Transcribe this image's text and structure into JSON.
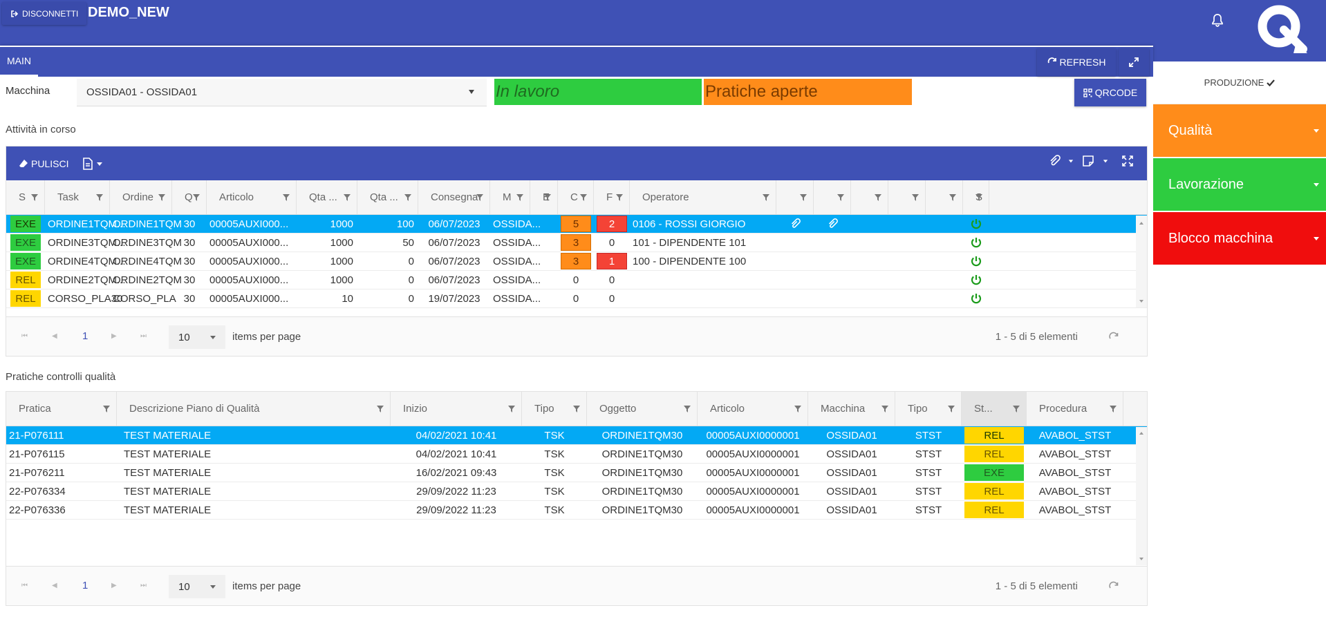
{
  "topbar": {
    "disconnect_label": "DISCONNETTI",
    "app_title": "DEMO_NEW"
  },
  "tabs": {
    "main_label": "MAIN",
    "refresh_label": "REFRESH"
  },
  "filter": {
    "macchina_label": "Macchina",
    "macchina_value": "OSSIDA01 - OSSIDA01",
    "state_in_lavoro": "In lavoro",
    "state_pratiche": "Pratiche aperte",
    "qrcode_label": "QRCODE"
  },
  "colors": {
    "primary": "#3f51b5",
    "selected_row": "#03a9f4",
    "green": "#2ecc40",
    "orange": "#ff8c1a",
    "red": "#f44336",
    "yellow": "#ffd600"
  },
  "attivita": {
    "title": "Attività in corso",
    "toolbar": {
      "clear_label": "PULISCI"
    },
    "columns": [
      "S",
      "Task",
      "Ordine",
      "Q",
      "Articolo",
      "Qta ...",
      "Qta ...",
      "Consegna",
      "M",
      "E",
      "C",
      "F",
      "Operatore",
      "",
      "",
      "",
      "",
      "",
      "S"
    ],
    "rows": [
      {
        "stato": "EXE",
        "task": "ORDINE1TQM...",
        "ordine": "ORDINE1TQM",
        "q": "30",
        "articolo": "00005AUXI000...",
        "qta1": "1000",
        "qta2": "100",
        "consegna": "06/07/2023",
        "macchina": "OSSIDA...",
        "c": "5",
        "f": "2",
        "operatore": "0106 - ROSSI GIORGIO"
      },
      {
        "stato": "EXE",
        "task": "ORDINE3TQM...",
        "ordine": "ORDINE3TQM",
        "q": "30",
        "articolo": "00005AUXI000...",
        "qta1": "1000",
        "qta2": "50",
        "consegna": "06/07/2023",
        "macchina": "OSSIDA...",
        "c": "3",
        "f": "0",
        "operatore": "101 - DIPENDENTE 101"
      },
      {
        "stato": "EXE",
        "task": "ORDINE4TQM...",
        "ordine": "ORDINE4TQM",
        "q": "30",
        "articolo": "00005AUXI000...",
        "qta1": "1000",
        "qta2": "0",
        "consegna": "06/07/2023",
        "macchina": "OSSIDA...",
        "c": "3",
        "f": "1",
        "operatore": "100 - DIPENDENTE 100"
      },
      {
        "stato": "REL",
        "task": "ORDINE2TQM...",
        "ordine": "ORDINE2TQM",
        "q": "30",
        "articolo": "00005AUXI000...",
        "qta1": "1000",
        "qta2": "0",
        "consegna": "06/07/2023",
        "macchina": "OSSIDA...",
        "c": "0",
        "f": "0",
        "operatore": ""
      },
      {
        "stato": "REL",
        "task": "CORSO_PLA30",
        "ordine": "CORSO_PLA",
        "q": "30",
        "articolo": "00005AUXI000...",
        "qta1": "10",
        "qta2": "0",
        "consegna": "19/07/2023",
        "macchina": "OSSIDA...",
        "c": "0",
        "f": "0",
        "operatore": ""
      }
    ],
    "pager": {
      "page": "1",
      "page_size": "10",
      "per_page_label": "items per page",
      "info": "1 - 5 di 5 elementi"
    }
  },
  "pratiche": {
    "title": "Pratiche controlli qualità",
    "columns": [
      "Pratica",
      "Descrizione Piano di Qualità",
      "Inizio",
      "Tipo",
      "Oggetto",
      "Articolo",
      "Macchina",
      "Tipo",
      "St...",
      "Procedura"
    ],
    "rows": [
      {
        "pratica": "21-P076111",
        "descrizione": "TEST MATERIALE",
        "inizio": "04/02/2021 10:41",
        "tipo": "TSK",
        "oggetto": "ORDINE1TQM30",
        "articolo": "00005AUXI0000001",
        "macchina": "OSSIDA01",
        "tipo2": "STST",
        "stato": "REL",
        "procedura": "AVABOL_STST"
      },
      {
        "pratica": "21-P076115",
        "descrizione": "TEST MATERIALE",
        "inizio": "04/02/2021 10:41",
        "tipo": "TSK",
        "oggetto": "ORDINE1TQM30",
        "articolo": "00005AUXI0000001",
        "macchina": "OSSIDA01",
        "tipo2": "STST",
        "stato": "REL",
        "procedura": "AVABOL_STST"
      },
      {
        "pratica": "21-P076211",
        "descrizione": "TEST MATERIALE",
        "inizio": "16/02/2021 09:43",
        "tipo": "TSK",
        "oggetto": "ORDINE1TQM30",
        "articolo": "00005AUXI0000001",
        "macchina": "OSSIDA01",
        "tipo2": "STST",
        "stato": "EXE",
        "procedura": "AVABOL_STST"
      },
      {
        "pratica": "22-P076334",
        "descrizione": "TEST MATERIALE",
        "inizio": "29/09/2022 11:23",
        "tipo": "TSK",
        "oggetto": "ORDINE1TQM30",
        "articolo": "00005AUXI0000001",
        "macchina": "OSSIDA01",
        "tipo2": "STST",
        "stato": "REL",
        "procedura": "AVABOL_STST"
      },
      {
        "pratica": "22-P076336",
        "descrizione": "TEST MATERIALE",
        "inizio": "29/09/2022 11:23",
        "tipo": "TSK",
        "oggetto": "ORDINE1TQM30",
        "articolo": "00005AUXI0000001",
        "macchina": "OSSIDA01",
        "tipo2": "STST",
        "stato": "REL",
        "procedura": "AVABOL_STST"
      }
    ],
    "pager": {
      "page": "1",
      "page_size": "10",
      "per_page_label": "items per page",
      "info": "1 - 5 di 5 elementi"
    }
  },
  "sidebar": {
    "header": "PRODUZIONE",
    "buttons": [
      {
        "label": "Qualità",
        "color": "#ff8c1a"
      },
      {
        "label": "Lavorazione",
        "color": "#2ecc40"
      },
      {
        "label": "Blocco macchina",
        "color": "#f00d0d"
      }
    ]
  }
}
